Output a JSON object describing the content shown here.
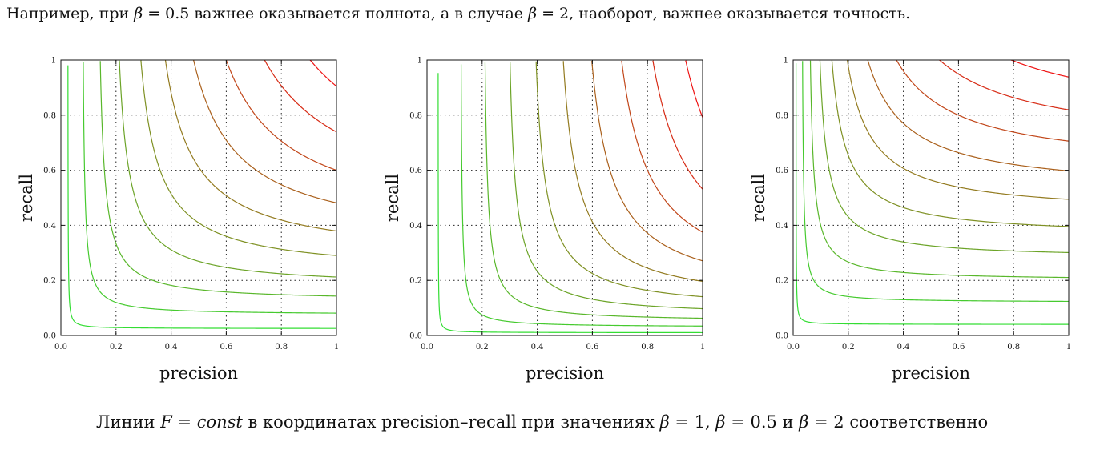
{
  "intro": {
    "part1": "Например, при ",
    "beta_sym": "β",
    "eq_half": " = 0.5",
    "part2": " важнее оказывается полнота, а в случае ",
    "eq_two": " = 2",
    "part3": ", наоборот, важнее оказывается точность."
  },
  "caption": {
    "part1": "Линии ",
    "F": "F",
    "eq": " = ",
    "const": "const",
    "part2": " в координатах precision–recall при значениях ",
    "beta_sym": "β",
    "v1": " = 1",
    "sep1": ", ",
    "v2": " = 0.5",
    "sep2": " и ",
    "v3": " = 2",
    "part3": " соответственно"
  },
  "chart_data": [
    {
      "type": "line",
      "beta": 1,
      "xlabel": "precision",
      "ylabel": "recall",
      "xlim": [
        0,
        1
      ],
      "ylim": [
        0,
        1
      ],
      "x_ticks": [
        "0.0",
        "0.2",
        "0.4",
        "0.6",
        "0.8",
        "1"
      ],
      "y_ticks": [
        "0.0",
        "0.2",
        "0.4",
        "0.6",
        "0.8",
        "1"
      ],
      "grid": true,
      "series": [
        {
          "F": 0.05
        },
        {
          "F": 0.15
        },
        {
          "F": 0.25
        },
        {
          "F": 0.35
        },
        {
          "F": 0.45
        },
        {
          "F": 0.55
        },
        {
          "F": 0.65
        },
        {
          "F": 0.75
        },
        {
          "F": 0.85
        },
        {
          "F": 0.95
        }
      ]
    },
    {
      "type": "line",
      "beta": 0.5,
      "xlabel": "precision",
      "ylabel": "recall",
      "xlim": [
        0,
        1
      ],
      "ylim": [
        0,
        1
      ],
      "x_ticks": [
        "0.0",
        "0.2",
        "0.4",
        "0.6",
        "0.8",
        "1"
      ],
      "y_ticks": [
        "0.0",
        "0.2",
        "0.4",
        "0.6",
        "0.8",
        "1"
      ],
      "grid": true,
      "series": [
        {
          "F": 0.05
        },
        {
          "F": 0.15
        },
        {
          "F": 0.25
        },
        {
          "F": 0.35
        },
        {
          "F": 0.45
        },
        {
          "F": 0.55
        },
        {
          "F": 0.65
        },
        {
          "F": 0.75
        },
        {
          "F": 0.85
        },
        {
          "F": 0.95
        }
      ]
    },
    {
      "type": "line",
      "beta": 2,
      "xlabel": "precision",
      "ylabel": "recall",
      "xlim": [
        0,
        1
      ],
      "ylim": [
        0,
        1
      ],
      "x_ticks": [
        "0.0",
        "0.2",
        "0.4",
        "0.6",
        "0.8",
        "1"
      ],
      "y_ticks": [
        "0.0",
        "0.2",
        "0.4",
        "0.6",
        "0.8",
        "1"
      ],
      "grid": true,
      "series": [
        {
          "F": 0.05
        },
        {
          "F": 0.15
        },
        {
          "F": 0.25
        },
        {
          "F": 0.35
        },
        {
          "F": 0.45
        },
        {
          "F": 0.55
        },
        {
          "F": 0.65
        },
        {
          "F": 0.75
        },
        {
          "F": 0.85
        },
        {
          "F": 0.95
        }
      ]
    }
  ],
  "colors": {
    "low_F": "#33dd33",
    "mid_F": "#888822",
    "high_F": "#ee1111",
    "grid": "#222222",
    "axis": "#111111"
  }
}
